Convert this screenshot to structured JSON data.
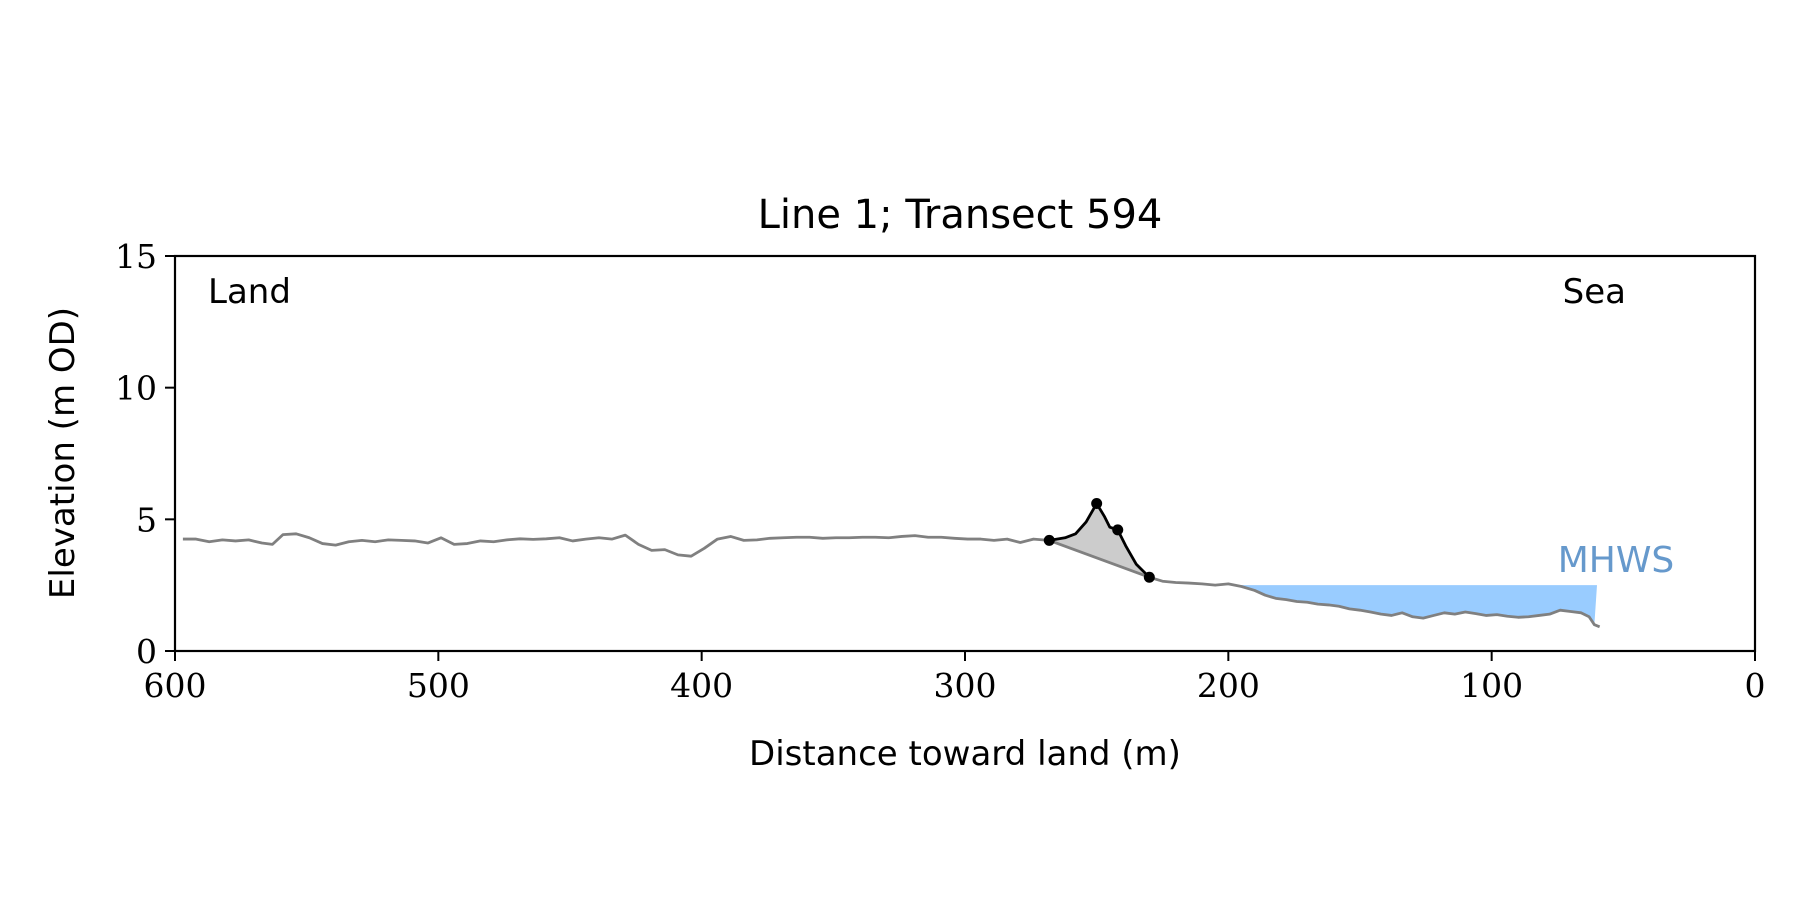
{
  "chart_data": {
    "type": "line",
    "title": "Line 1; Transect 594",
    "xlabel": "Distance toward land (m)",
    "ylabel": "Elevation (m OD)",
    "xlim": [
      600,
      0
    ],
    "ylim": [
      0,
      15
    ],
    "x_ticks": [
      600,
      500,
      400,
      300,
      200,
      100,
      0
    ],
    "y_ticks": [
      0,
      5,
      10,
      15
    ],
    "grid": false,
    "annotations": {
      "left": "Land",
      "right": "Sea",
      "mhws": "MHWS"
    },
    "colors": {
      "profile": "#808080",
      "dune": "#000000",
      "dune_fill": "#cccccc",
      "mhws_fill": "#99ccff",
      "mhws_label": "#6699cc"
    },
    "mhws": {
      "elevation": 2.5,
      "x_start": 198,
      "x_end": 60
    },
    "dune_points": [
      {
        "x": 268,
        "y": 4.2
      },
      {
        "x": 250,
        "y": 5.6
      },
      {
        "x": 242,
        "y": 4.6
      },
      {
        "x": 230,
        "y": 2.8
      }
    ],
    "dune_profile": [
      {
        "x": 268,
        "y": 4.2
      },
      {
        "x": 262,
        "y": 4.3
      },
      {
        "x": 258,
        "y": 4.45
      },
      {
        "x": 254,
        "y": 4.9
      },
      {
        "x": 250,
        "y": 5.6
      },
      {
        "x": 247,
        "y": 5.1
      },
      {
        "x": 245,
        "y": 4.7
      },
      {
        "x": 242,
        "y": 4.6
      },
      {
        "x": 239,
        "y": 4.0
      },
      {
        "x": 235,
        "y": 3.3
      },
      {
        "x": 230,
        "y": 2.8
      }
    ],
    "profile": [
      {
        "x": 597,
        "y": 4.25
      },
      {
        "x": 592,
        "y": 4.25
      },
      {
        "x": 587,
        "y": 4.15
      },
      {
        "x": 582,
        "y": 4.22
      },
      {
        "x": 577,
        "y": 4.18
      },
      {
        "x": 572,
        "y": 4.22
      },
      {
        "x": 567,
        "y": 4.1
      },
      {
        "x": 563,
        "y": 4.05
      },
      {
        "x": 559,
        "y": 4.42
      },
      {
        "x": 554,
        "y": 4.45
      },
      {
        "x": 549,
        "y": 4.3
      },
      {
        "x": 544,
        "y": 4.08
      },
      {
        "x": 539,
        "y": 4.02
      },
      {
        "x": 534,
        "y": 4.15
      },
      {
        "x": 529,
        "y": 4.2
      },
      {
        "x": 524,
        "y": 4.15
      },
      {
        "x": 519,
        "y": 4.22
      },
      {
        "x": 514,
        "y": 4.2
      },
      {
        "x": 509,
        "y": 4.18
      },
      {
        "x": 504,
        "y": 4.1
      },
      {
        "x": 499,
        "y": 4.3
      },
      {
        "x": 494,
        "y": 4.05
      },
      {
        "x": 489,
        "y": 4.08
      },
      {
        "x": 484,
        "y": 4.18
      },
      {
        "x": 479,
        "y": 4.15
      },
      {
        "x": 474,
        "y": 4.22
      },
      {
        "x": 469,
        "y": 4.26
      },
      {
        "x": 464,
        "y": 4.24
      },
      {
        "x": 459,
        "y": 4.26
      },
      {
        "x": 454,
        "y": 4.3
      },
      {
        "x": 449,
        "y": 4.18
      },
      {
        "x": 444,
        "y": 4.25
      },
      {
        "x": 439,
        "y": 4.3
      },
      {
        "x": 434,
        "y": 4.25
      },
      {
        "x": 429,
        "y": 4.4
      },
      {
        "x": 424,
        "y": 4.05
      },
      {
        "x": 419,
        "y": 3.82
      },
      {
        "x": 414,
        "y": 3.85
      },
      {
        "x": 409,
        "y": 3.65
      },
      {
        "x": 404,
        "y": 3.6
      },
      {
        "x": 399,
        "y": 3.9
      },
      {
        "x": 394,
        "y": 4.25
      },
      {
        "x": 389,
        "y": 4.35
      },
      {
        "x": 384,
        "y": 4.2
      },
      {
        "x": 379,
        "y": 4.22
      },
      {
        "x": 374,
        "y": 4.28
      },
      {
        "x": 369,
        "y": 4.3
      },
      {
        "x": 364,
        "y": 4.32
      },
      {
        "x": 359,
        "y": 4.32
      },
      {
        "x": 354,
        "y": 4.28
      },
      {
        "x": 349,
        "y": 4.3
      },
      {
        "x": 344,
        "y": 4.3
      },
      {
        "x": 339,
        "y": 4.32
      },
      {
        "x": 334,
        "y": 4.32
      },
      {
        "x": 329,
        "y": 4.3
      },
      {
        "x": 324,
        "y": 4.35
      },
      {
        "x": 319,
        "y": 4.38
      },
      {
        "x": 314,
        "y": 4.32
      },
      {
        "x": 309,
        "y": 4.32
      },
      {
        "x": 304,
        "y": 4.28
      },
      {
        "x": 299,
        "y": 4.25
      },
      {
        "x": 294,
        "y": 4.25
      },
      {
        "x": 289,
        "y": 4.2
      },
      {
        "x": 284,
        "y": 4.25
      },
      {
        "x": 279,
        "y": 4.12
      },
      {
        "x": 274,
        "y": 4.25
      },
      {
        "x": 268,
        "y": 4.2
      },
      {
        "x": 230,
        "y": 2.8
      },
      {
        "x": 225,
        "y": 2.65
      },
      {
        "x": 220,
        "y": 2.6
      },
      {
        "x": 215,
        "y": 2.58
      },
      {
        "x": 210,
        "y": 2.55
      },
      {
        "x": 205,
        "y": 2.5
      },
      {
        "x": 200,
        "y": 2.55
      },
      {
        "x": 195,
        "y": 2.45
      },
      {
        "x": 190,
        "y": 2.3
      },
      {
        "x": 186,
        "y": 2.12
      },
      {
        "x": 182,
        "y": 2.0
      },
      {
        "x": 178,
        "y": 1.95
      },
      {
        "x": 174,
        "y": 1.88
      },
      {
        "x": 170,
        "y": 1.85
      },
      {
        "x": 166,
        "y": 1.78
      },
      {
        "x": 162,
        "y": 1.75
      },
      {
        "x": 158,
        "y": 1.7
      },
      {
        "x": 154,
        "y": 1.6
      },
      {
        "x": 150,
        "y": 1.55
      },
      {
        "x": 146,
        "y": 1.48
      },
      {
        "x": 142,
        "y": 1.4
      },
      {
        "x": 138,
        "y": 1.35
      },
      {
        "x": 134,
        "y": 1.45
      },
      {
        "x": 130,
        "y": 1.3
      },
      {
        "x": 126,
        "y": 1.25
      },
      {
        "x": 122,
        "y": 1.35
      },
      {
        "x": 118,
        "y": 1.45
      },
      {
        "x": 114,
        "y": 1.4
      },
      {
        "x": 110,
        "y": 1.48
      },
      {
        "x": 106,
        "y": 1.42
      },
      {
        "x": 102,
        "y": 1.35
      },
      {
        "x": 98,
        "y": 1.38
      },
      {
        "x": 94,
        "y": 1.32
      },
      {
        "x": 90,
        "y": 1.28
      },
      {
        "x": 86,
        "y": 1.3
      },
      {
        "x": 82,
        "y": 1.35
      },
      {
        "x": 78,
        "y": 1.4
      },
      {
        "x": 74,
        "y": 1.55
      },
      {
        "x": 70,
        "y": 1.5
      },
      {
        "x": 66,
        "y": 1.45
      },
      {
        "x": 63,
        "y": 1.3
      },
      {
        "x": 61,
        "y": 1.0
      },
      {
        "x": 59,
        "y": 0.92
      }
    ]
  }
}
